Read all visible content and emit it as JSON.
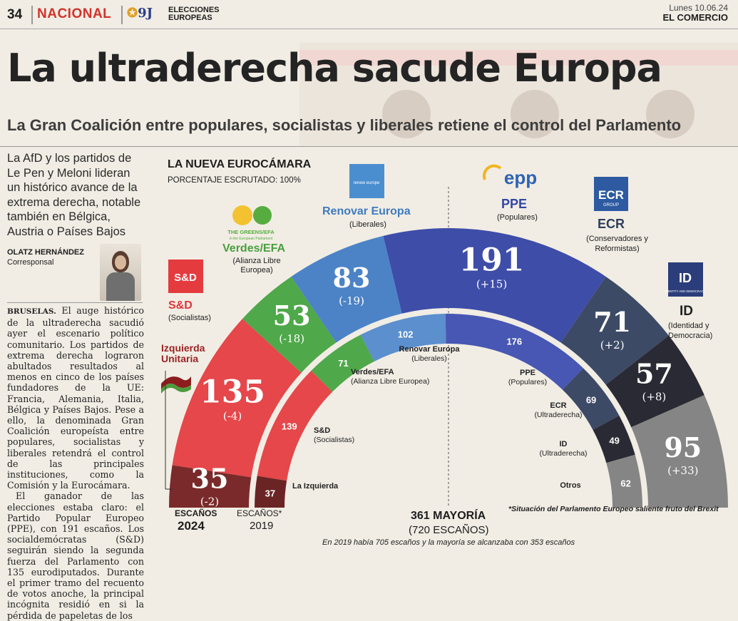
{
  "header": {
    "page_number": "34",
    "section": "NACIONAL",
    "logo_text": "9J",
    "section_tag_line1": "ELECCIONES",
    "section_tag_line2": "EUROPEAS",
    "date": "Lunes 10.06.24",
    "newspaper": "EL COMERCIO"
  },
  "article": {
    "headline": "La ultraderecha sacude Europa",
    "subheadline": "La Gran Coalición entre populares, socialistas y liberales retiene el control del Parlamento",
    "lede": "La AfD y los partidos de Le Pen y Meloni lideran un histórico avance de la extrema derecha, notable también en Bélgica, Austria o Países Bajos",
    "author": "OLATZ HERNÁNDEZ",
    "author_role": "Corresponsal",
    "dateline": "BRUSELAS.",
    "body_p1": "El auge histórico de la ultraderecha sacudió ayer el escenario político comunitario. Los partidos de extrema derecha lograron abultados resultados al menos en cinco de los países fundadores de la UE: Francia, Alemania, Italia, Bélgica y Países Bajos. Pese a ello, la denominada Gran Coalición europeísta entre populares, socialistas y liberales retendrá el control de las principales instituciones, como la Comisión y la Eurocámara.",
    "body_p2": "El ganador de las elecciones estaba claro: el Partido Popular Europeo (PPE), con 191 escaños. Los socialdemócratas (S&D) seguirán siendo la segunda fuerza del Parlamento con 135 eurodiputados. Durante el primer tramo del recuento de votos anoche, la principal incógnita residió en si la pérdida de papeletas de los"
  },
  "graphic": {
    "title": "LA NUEVA EUROCÁMARA",
    "subtitle": "PORCENTAJE ESCRUTADO: 100%",
    "majority_label": "361 MAYORÍA",
    "total_label": "(720 ESCAÑOS)",
    "footnote_2019": "En 2019 había 705 escaños y la mayoría se alcanzaba con 353 escaños",
    "brexit_note": "*Situación del Parlamento Europeo saliente fruto del Brexit",
    "label_2024_line1": "ESCAÑOS",
    "label_2024_line2": "2024",
    "label_2019_line1": "ESCAÑOS*",
    "label_2019_line2": "2019",
    "logos": {
      "sd": "S&D",
      "greens_small": "THE GREENS/EFA",
      "greens_tiny": "in the European Parliament",
      "renew": "renew europe",
      "epp": "epp",
      "ecr": "ECR",
      "ecr_small": "GROUP",
      "id_small": "IDENTITY AND DEMOCRACY"
    }
  },
  "chart_data": {
    "type": "semicircle-parliament",
    "title": "LA NUEVA EUROCÁMARA",
    "total_2024": 720,
    "majority_2024": 361,
    "total_2019": 705,
    "majority_2019": 353,
    "series": [
      {
        "name": "Izquierda Unitaria",
        "paren": "",
        "seats_2024": 35,
        "change": "(-2)",
        "seats_2019": 37,
        "label_2019": "La Izquierda",
        "sub_2019": "",
        "color": "#7a2a2a",
        "color_2019": "#6b2424"
      },
      {
        "name": "S&D",
        "paren": "(Socialistas)",
        "seats_2024": 135,
        "change": "(-4)",
        "seats_2019": 139,
        "label_2019": "S&D",
        "sub_2019": "(Socialistas)",
        "color": "#e5474a",
        "color_2019": "#e5474a"
      },
      {
        "name": "Verdes/EFA",
        "paren": "(Alianza Libre Europea)",
        "seats_2024": 53,
        "change": "(-18)",
        "seats_2019": 71,
        "label_2019": "Verdes/EFA",
        "sub_2019": "(Alianza Libre Europea)",
        "color": "#4fa84a",
        "color_2019": "#4fa84a"
      },
      {
        "name": "Renovar Europa",
        "paren": "(Liberales)",
        "seats_2024": 83,
        "change": "(-19)",
        "seats_2019": 102,
        "label_2019": "Renovar Europa",
        "sub_2019": "(Liberales)",
        "color": "#4c83c6",
        "color_2019": "#5b8fce"
      },
      {
        "name": "PPE",
        "paren": "(Populares)",
        "seats_2024": 191,
        "change": "(+15)",
        "seats_2019": 176,
        "label_2019": "PPE",
        "sub_2019": "(Populares)",
        "color": "#3e4da8",
        "color_2019": "#4757b3"
      },
      {
        "name": "ECR",
        "paren": "(Conservadores y Reformistas)",
        "seats_2024": 71,
        "change": "(+2)",
        "seats_2019": 69,
        "label_2019": "ECR",
        "sub_2019": "(Ultraderecha)",
        "color": "#3c4a66",
        "color_2019": "#3c4a66"
      },
      {
        "name": "ID",
        "paren": "(Identidad y Democracia)",
        "seats_2024": 57,
        "change": "(+8)",
        "seats_2019": 49,
        "label_2019": "ID",
        "sub_2019": "(Ultraderecha)",
        "color": "#2a2a34",
        "color_2019": "#2a2a34"
      },
      {
        "name": "Otros",
        "paren": "",
        "seats_2024": 95,
        "change": "(+33)",
        "seats_2019": 62,
        "label_2019": "Otros",
        "sub_2019": "",
        "color": "#858585",
        "color_2019": "#858585"
      }
    ]
  }
}
